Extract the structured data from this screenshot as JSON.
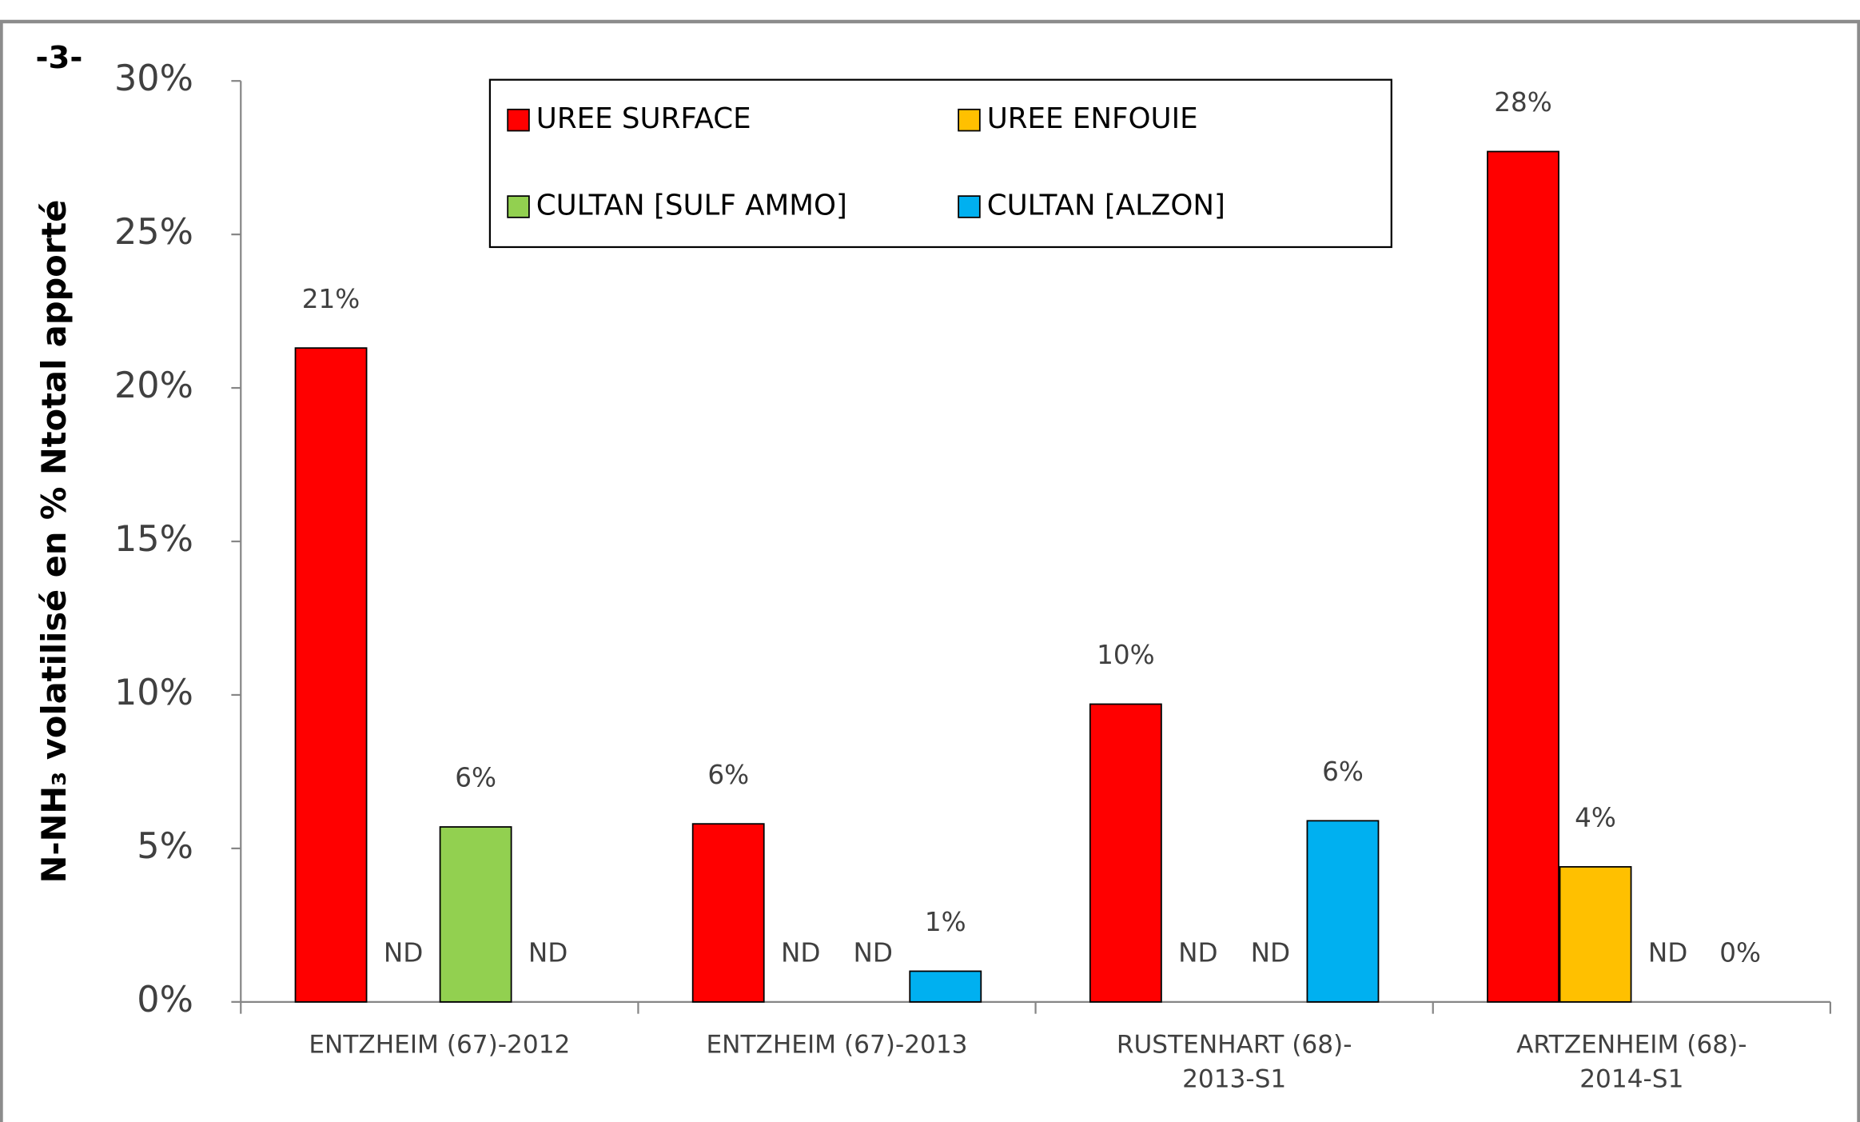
{
  "chart_data": {
    "type": "bar",
    "annotation": "-3-",
    "ylabel": "N-NH₃ volatilisé en % Ntotal apporté",
    "categories": [
      "ENTZHEIM (67)-2012",
      "ENTZHEIM (67)-2013",
      "RUSTENHART (68)-\n2013-S1",
      "ARTZENHEIM (68)-\n2014-S1"
    ],
    "series": [
      {
        "name": "UREE SURFACE",
        "color": "#ff0000",
        "values": [
          21.3,
          5.8,
          9.7,
          27.7
        ],
        "value_labels": [
          "21%",
          "6%",
          "10%",
          "28%"
        ]
      },
      {
        "name": "UREE ENFOUIE",
        "color": "#ffc000",
        "values": [
          null,
          null,
          null,
          4.4
        ],
        "value_labels": [
          "ND",
          "ND",
          "ND",
          "4%"
        ]
      },
      {
        "name": "CULTAN [SULF AMMO]",
        "color": "#92d050",
        "values": [
          5.7,
          null,
          null,
          null
        ],
        "value_labels": [
          "6%",
          "ND",
          "ND",
          "ND"
        ]
      },
      {
        "name": "CULTAN [ALZON]",
        "color": "#00b0f0",
        "values": [
          null,
          1.0,
          5.9,
          0
        ],
        "value_labels": [
          "ND",
          "1%",
          "6%",
          "0%"
        ]
      }
    ],
    "ylim": [
      0,
      30
    ],
    "yticks": [
      {
        "value": 0,
        "label": "0%"
      },
      {
        "value": 5,
        "label": "5%"
      },
      {
        "value": 10,
        "label": "10%"
      },
      {
        "value": 15,
        "label": "15%"
      },
      {
        "value": 20,
        "label": "20%"
      },
      {
        "value": 25,
        "label": "25%"
      },
      {
        "value": 30,
        "label": "30%"
      }
    ],
    "legend": "top"
  }
}
